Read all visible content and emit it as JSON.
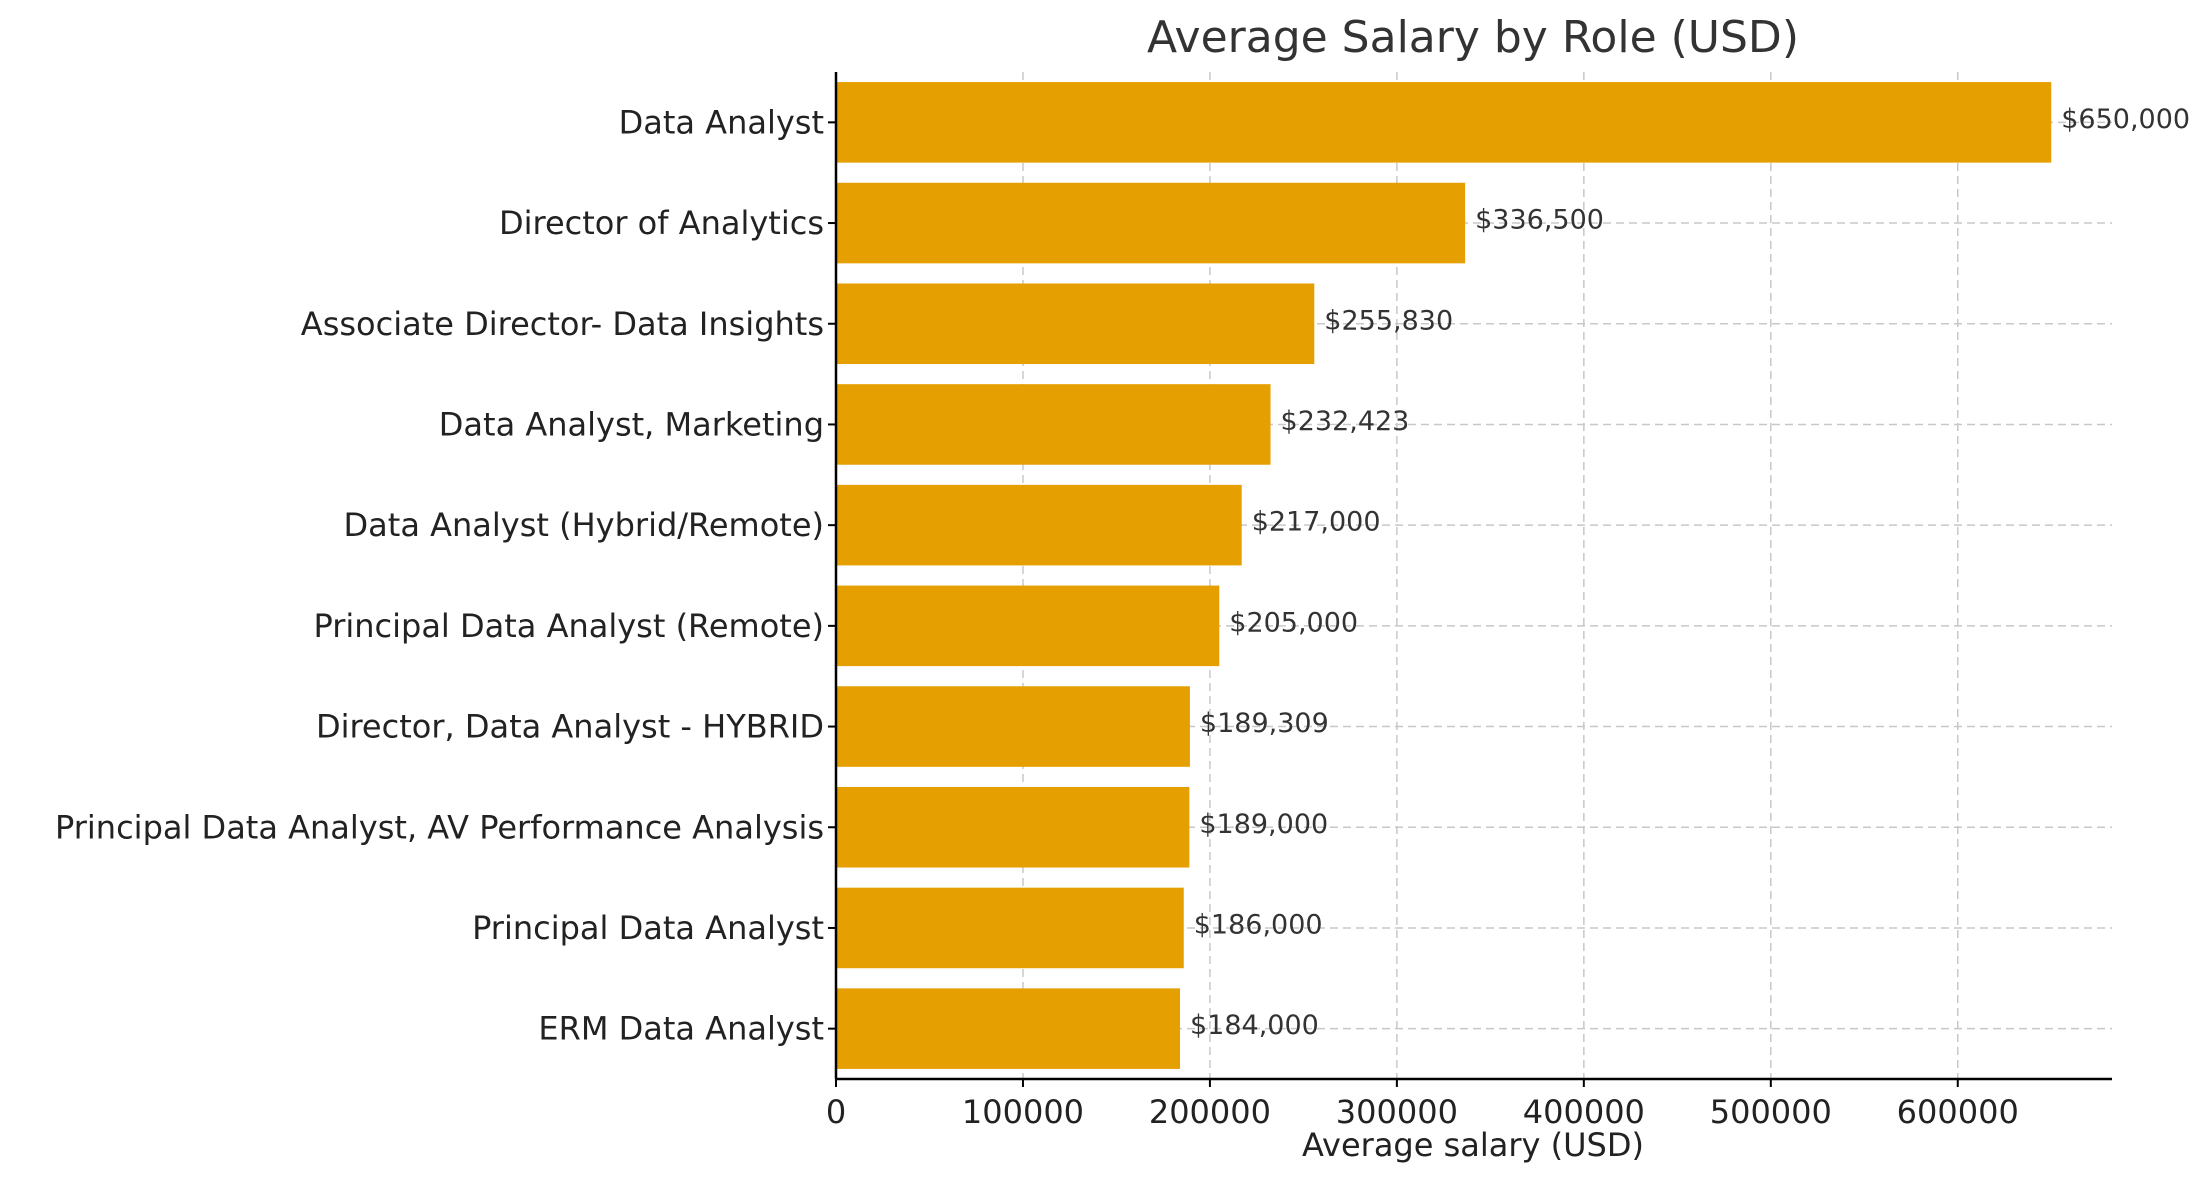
{
  "chart_data": {
    "type": "bar",
    "orientation": "horizontal",
    "title": "Average Salary by Role (USD)",
    "xlabel": "Average salary (USD)",
    "ylabel": "",
    "categories": [
      "Data Analyst",
      "Director of Analytics",
      "Associate Director- Data Insights",
      "Data Analyst, Marketing",
      "Data Analyst (Hybrid/Remote)",
      "Principal Data Analyst (Remote)",
      "Director, Data Analyst - HYBRID",
      "Principal Data Analyst, AV Performance Analysis",
      "Principal Data Analyst",
      "ERM Data Analyst"
    ],
    "values": [
      650000,
      336500,
      255830,
      232423,
      217000,
      205000,
      189309,
      189000,
      186000,
      184000
    ],
    "value_labels": [
      "$650,000",
      "$336,500",
      "$255,830",
      "$232,423",
      "$217,000",
      "$205,000",
      "$189,309",
      "$189,000",
      "$186,000",
      "$184,000"
    ],
    "xlim": [
      0,
      682500
    ],
    "xticks": [
      0,
      100000,
      200000,
      300000,
      400000,
      500000,
      600000
    ],
    "xtick_labels": [
      "0",
      "100000",
      "200000",
      "300000",
      "400000",
      "500000",
      "600000"
    ],
    "grid": true,
    "bar_color": "#E69F00"
  }
}
